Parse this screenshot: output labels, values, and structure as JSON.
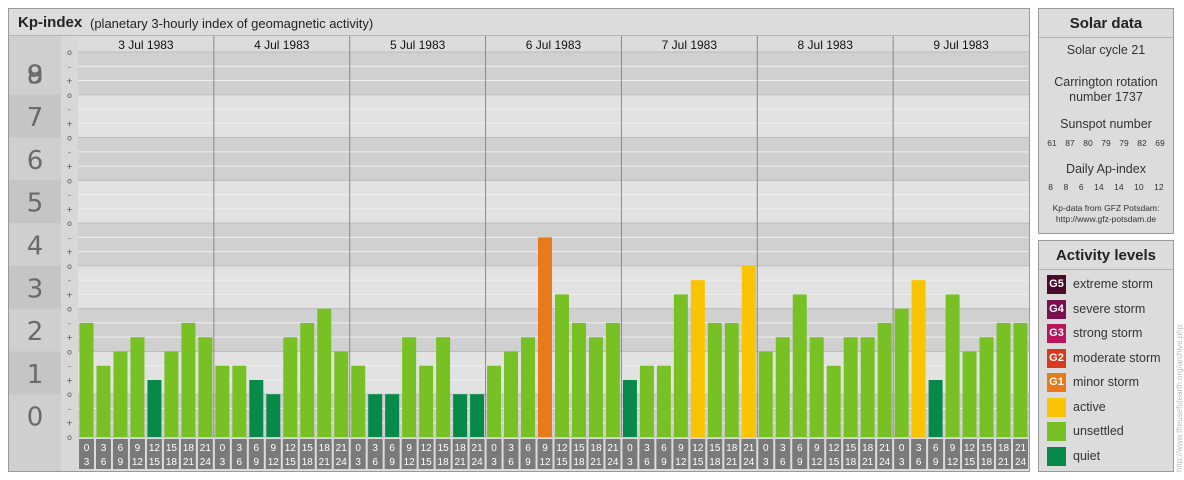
{
  "header": {
    "title": "Kp-index",
    "subtitle": "(planetary 3-hourly index of geomagnetic activity)"
  },
  "solar": {
    "title": "Solar data",
    "cycle": "Solar cycle 21",
    "carrington_line1": "Carrington rotation",
    "carrington_line2": "number 1737",
    "sunspot_label": "Sunspot number",
    "sunspot_values": [
      "61",
      "87",
      "80",
      "79",
      "79",
      "82",
      "69"
    ],
    "ap_label": "Daily Ap-index",
    "ap_values": [
      "8",
      "8",
      "6",
      "14",
      "14",
      "10",
      "12"
    ],
    "source_line1": "Kp-data from GFZ Potsdam:",
    "source_line2": "http://www.gfz-potsdam.de"
  },
  "levels": {
    "title": "Activity levels",
    "items": [
      {
        "code": "G5",
        "label": "extreme storm",
        "color": "#4a0a2a"
      },
      {
        "code": "G4",
        "label": "severe storm",
        "color": "#7a1050"
      },
      {
        "code": "G3",
        "label": "strong storm",
        "color": "#b8155a"
      },
      {
        "code": "G2",
        "label": "moderate storm",
        "color": "#d83a1e"
      },
      {
        "code": "G1",
        "label": "minor storm",
        "color": "#e87a1a"
      },
      {
        "code": "",
        "label": "active",
        "color": "#fac400"
      },
      {
        "code": "",
        "label": "unsettled",
        "color": "#77c125"
      },
      {
        "code": "",
        "label": "quiet",
        "color": "#07894a"
      }
    ]
  },
  "credit": "http://www.theusefulearth.org/archive.php",
  "chart_data": {
    "type": "bar",
    "ylim": [
      0,
      9
    ],
    "y_ticks": [
      "0",
      "1",
      "2",
      "3",
      "4",
      "5",
      "6",
      "7",
      "8",
      "9"
    ],
    "sub_ticks": [
      "-",
      "o",
      "+"
    ],
    "days": [
      "3 Jul 1983",
      "4 Jul 1983",
      "5 Jul 1983",
      "6 Jul 1983",
      "7 Jul 1983",
      "8 Jul 1983",
      "9 Jul 1983"
    ],
    "interval_top": [
      "0",
      "3",
      "6",
      "9",
      "12",
      "15",
      "18",
      "21"
    ],
    "interval_bottom": [
      "3",
      "6",
      "9",
      "12",
      "15",
      "18",
      "21",
      "24"
    ],
    "series": [
      {
        "values": [
          [
            2.667,
            1.667,
            2.0,
            2.333,
            1.333,
            2.0,
            2.667,
            2.333
          ],
          [
            1.667,
            1.667,
            1.333,
            1.0,
            2.333,
            2.667,
            3.0,
            2.0
          ],
          [
            1.667,
            1.0,
            1.0,
            2.333,
            1.667,
            2.333,
            1.0,
            1.0
          ],
          [
            1.667,
            2.0,
            2.333,
            4.667,
            3.333,
            2.667,
            2.333,
            2.667
          ],
          [
            1.333,
            1.667,
            1.667,
            3.333,
            3.667,
            2.667,
            2.667,
            4.0
          ],
          [
            2.0,
            2.333,
            3.333,
            2.333,
            1.667,
            2.333,
            2.333,
            2.667
          ],
          [
            3.0,
            3.667,
            1.333,
            3.333,
            2.0,
            2.333,
            2.667,
            2.667
          ]
        ]
      }
    ],
    "level_colors": {
      "quiet": "#07894a",
      "unsettled": "#77c125",
      "active": "#fac400",
      "minor": "#e87a1a"
    }
  }
}
